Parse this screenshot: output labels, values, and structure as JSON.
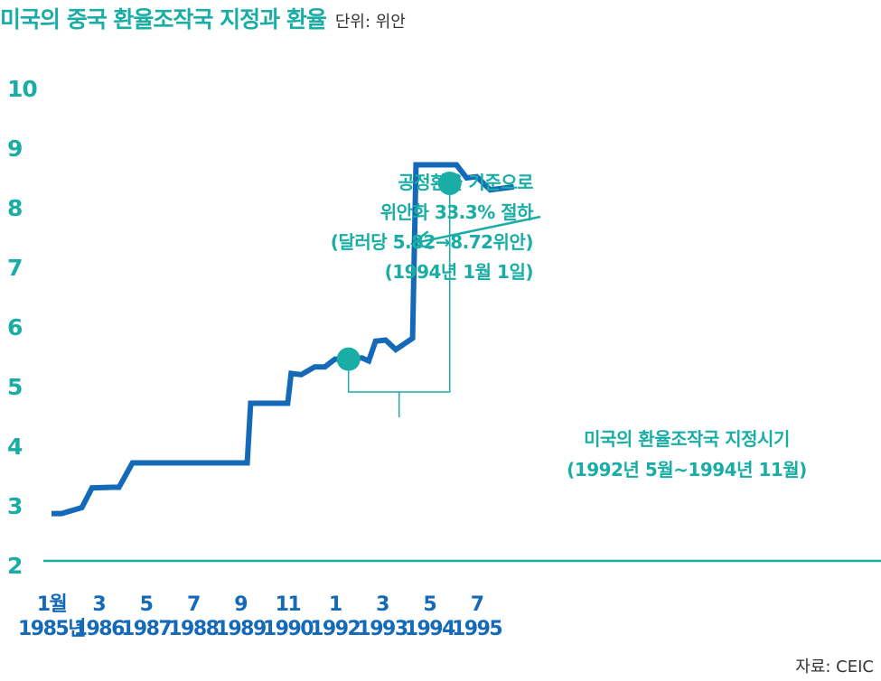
{
  "header": {
    "title": "미국의 중국 환율조작국 지정과 환율",
    "unit": "단위: 위안"
  },
  "source": "자료: CEIC",
  "colors": {
    "line": "#1469b8",
    "accent": "#1aada6",
    "axis_text": "#1aada6",
    "tick_text": "#1469b8"
  },
  "chart_data": {
    "type": "line",
    "title": "미국의 중국 환율조작국 지정과 환율",
    "ylabel": "",
    "xlabel": "",
    "ylim": [
      2,
      10
    ],
    "yticks": [
      "2",
      "3",
      "4",
      "5",
      "6",
      "7",
      "8",
      "9",
      "10"
    ],
    "grid": false,
    "xticks": [
      {
        "x": "1985-01",
        "month": "1월",
        "year": "1985년"
      },
      {
        "x": "1986-03",
        "month": "3",
        "year": "1986"
      },
      {
        "x": "1987-05",
        "month": "5",
        "year": "1987"
      },
      {
        "x": "1988-07",
        "month": "7",
        "year": "1988"
      },
      {
        "x": "1989-09",
        "month": "9",
        "year": "1989"
      },
      {
        "x": "1990-11",
        "month": "11",
        "year": "1990"
      },
      {
        "x": "1992-01",
        "month": "1",
        "year": "1992"
      },
      {
        "x": "1993-03",
        "month": "3",
        "year": "1993"
      },
      {
        "x": "1994-05",
        "month": "5",
        "year": "1994"
      },
      {
        "x": "1995-07",
        "month": "7",
        "year": "1995"
      }
    ],
    "series": [
      {
        "x": [
          "1985-01",
          "1985-04",
          "1985-10",
          "1986-01",
          "1986-07",
          "1986-09",
          "1987-01",
          "1987-07",
          "1988-01",
          "1988-07",
          "1989-01",
          "1989-07",
          "1989-11",
          "1989-12",
          "1990-06",
          "1990-11",
          "1990-12",
          "1991-03",
          "1991-07",
          "1991-10",
          "1992-01",
          "1992-05",
          "1992-09",
          "1992-11",
          "1993-01",
          "1993-04",
          "1993-07",
          "1993-12",
          "1994-01",
          "1995-01",
          "1995-04",
          "1995-07",
          "1995-11",
          "1996-06"
        ],
        "values": [
          2.87,
          2.87,
          2.97,
          3.3,
          3.31,
          3.31,
          3.72,
          3.72,
          3.72,
          3.72,
          3.72,
          3.72,
          3.72,
          4.72,
          4.72,
          4.72,
          5.22,
          5.2,
          5.33,
          5.33,
          5.46,
          5.46,
          5.48,
          5.43,
          5.76,
          5.78,
          5.62,
          5.81,
          8.72,
          8.72,
          8.5,
          8.52,
          8.3,
          8.35
        ]
      }
    ],
    "markers": [
      {
        "x": "1992-05",
        "y": 5.46
      },
      {
        "x": "1994-11",
        "y": 8.41
      }
    ],
    "annotations": [
      {
        "lines": [
          "공정환율 기준으로",
          "위안화 33.3% 절하",
          "(달러당 5.82→8.72위안)",
          "(1994년 1월 1일)"
        ],
        "arrow_to": {
          "x": "1994-01",
          "y": 7.4
        }
      },
      {
        "lines": [
          "미국의 환율조작국 지정시기",
          "(1992년 5월~1994년 11월)"
        ],
        "bracket": [
          "1992-05",
          "1994-11"
        ]
      }
    ]
  }
}
